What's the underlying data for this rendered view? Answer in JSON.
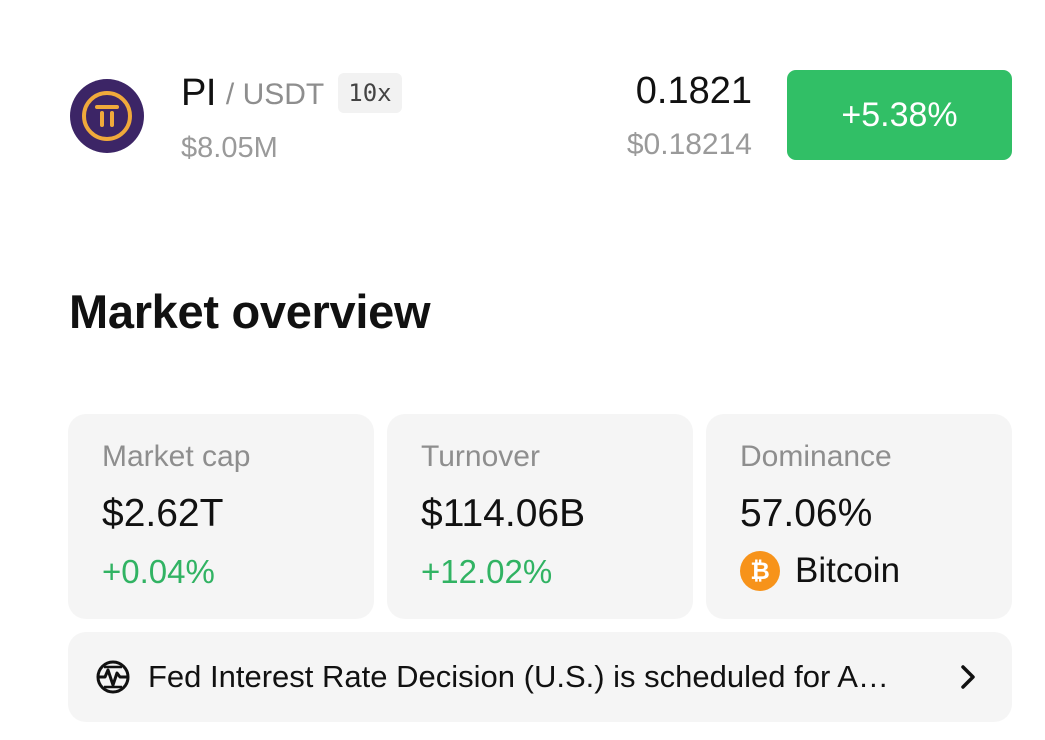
{
  "ticker": {
    "base_symbol": "PI",
    "quote_symbol": "/ USDT",
    "leverage": "10x",
    "volume": "$8.05M",
    "price": "0.1821",
    "fiat_price": "$0.18214",
    "change": "+5.38%",
    "logo_icon": "pi-network-icon",
    "colors": {
      "logo_bg": "#3c2566",
      "logo_ring": "#f0a93b",
      "change_bg": "#31bf66"
    }
  },
  "market_overview": {
    "title": "Market overview",
    "cards": [
      {
        "label": "Market cap",
        "value": "$2.62T",
        "change": "+0.04%"
      },
      {
        "label": "Turnover",
        "value": "$114.06B",
        "change": "+12.02%"
      },
      {
        "label": "Dominance",
        "value": "57.06%",
        "coin_name": "Bitcoin",
        "coin_icon": "bitcoin-icon"
      }
    ],
    "positive_color": "#31b363"
  },
  "news": {
    "text": "Fed Interest Rate Decision (U.S.) is scheduled for A…",
    "icon": "economic-event-icon",
    "action_icon": "chevron-right-icon"
  }
}
